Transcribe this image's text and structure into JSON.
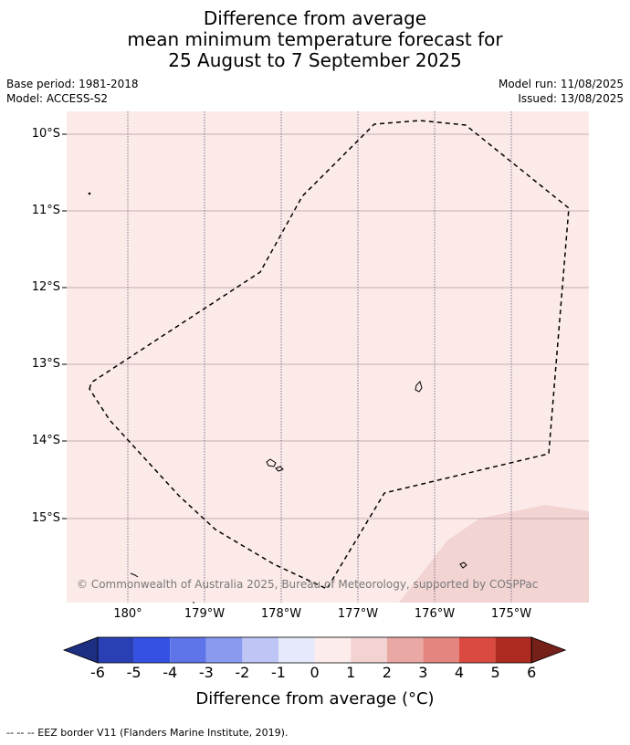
{
  "title": {
    "line1": "Difference from average",
    "line2": "mean minimum temperature forecast for",
    "line3": "25 August to 7 September 2025"
  },
  "meta": {
    "base_period": "Base period: 1981-2018",
    "model": "Model: ACCESS-S2",
    "model_run": "Model run: 11/08/2025",
    "issued": "Issued: 13/08/2025"
  },
  "map": {
    "background_color": "#fbeae8",
    "anomaly_patch_color": "#f2d4d2",
    "lat_labels": [
      "10°S",
      "11°S",
      "12°S",
      "13°S",
      "14°S",
      "15°S"
    ],
    "lon_labels": [
      "180°",
      "179°W",
      "178°W",
      "177°W",
      "176°W",
      "175°W"
    ],
    "copyright": "© Commonwealth of Australia 2025, Bureau of Meteorology, supported by COSPPac"
  },
  "colorbar": {
    "tick_labels": [
      "-6",
      "-5",
      "-4",
      "-3",
      "-2",
      "-1",
      "0",
      "1",
      "2",
      "3",
      "4",
      "5",
      "6"
    ],
    "colors": [
      "#1c2f82",
      "#2a3fb4",
      "#3451e4",
      "#5e74e8",
      "#8a9bef",
      "#bfc6f6",
      "#e6e8fb",
      "#fceceb",
      "#f3d3d1",
      "#eaa8a4",
      "#e58580",
      "#da4a41",
      "#ad2a20",
      "#76201a"
    ],
    "title": "Difference from average (°C)"
  },
  "footer": "-- -- -- EEZ border V11 (Flanders Marine Institute, 2019)."
}
